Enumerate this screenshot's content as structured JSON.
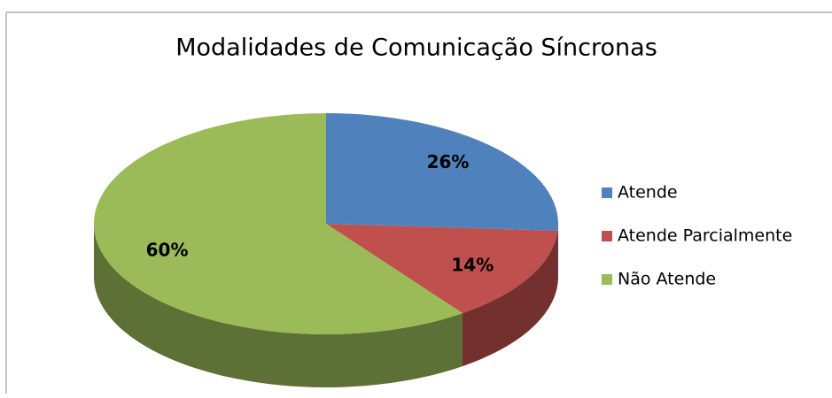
{
  "chart_data": {
    "type": "pie",
    "title": "Modalidades de Comunicação Síncronas",
    "categories": [
      "Atende",
      "Atende Parcialmente",
      "Não Atende"
    ],
    "values": [
      26,
      14,
      60
    ],
    "value_labels": [
      "26%",
      "14%",
      "60%"
    ],
    "colors": [
      "#4f81bd",
      "#c0504d",
      "#9bbb59"
    ],
    "legend": "right"
  }
}
